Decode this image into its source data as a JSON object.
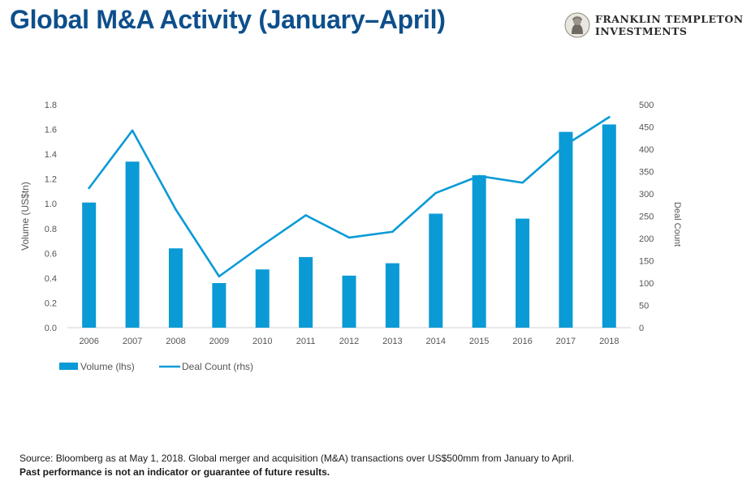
{
  "header": {
    "title": "Global M&A Activity (January–April)",
    "brand_line1": "FRANKLIN TEMPLETON",
    "brand_line2": "INVESTMENTS"
  },
  "chart_data": {
    "type": "bar",
    "categories": [
      "2006",
      "2007",
      "2008",
      "2009",
      "2010",
      "2011",
      "2012",
      "2013",
      "2014",
      "2015",
      "2016",
      "2017",
      "2018"
    ],
    "series": [
      {
        "name": "Volume (lhs)",
        "type": "bar",
        "axis": "left",
        "color": "#0a9ad6",
        "values": [
          1.01,
          1.34,
          0.64,
          0.36,
          0.47,
          0.57,
          0.42,
          0.52,
          0.92,
          1.23,
          0.88,
          1.58,
          1.64
        ]
      },
      {
        "name": "Deal Count (rhs)",
        "type": "line",
        "axis": "right",
        "color": "#0a9ad6",
        "values": [
          313,
          442,
          265,
          115,
          185,
          252,
          202,
          215,
          302,
          340,
          325,
          410,
          472
        ]
      }
    ],
    "ylabel": "Volume (US$tn)",
    "ylim": [
      0,
      1.8
    ],
    "yticks": [
      "0.0",
      "0.2",
      "0.4",
      "0.6",
      "0.8",
      "1.0",
      "1.2",
      "1.4",
      "1.6",
      "1.8"
    ],
    "y2label": "Deal Count",
    "y2lim": [
      0,
      500
    ],
    "y2ticks": [
      "0",
      "50",
      "100",
      "150",
      "200",
      "250",
      "300",
      "350",
      "400",
      "450",
      "500"
    ],
    "legend_position": "bottom-left",
    "grid": false
  },
  "footer": {
    "source": "Source: Bloomberg as at May 1, 2018. Global merger and acquisition (M&A) transactions over US$500mm from January to April.",
    "disclaimer": "Past performance is not an indicator or guarantee of future results."
  },
  "colors": {
    "title": "#0d4f8b",
    "series": "#0a9ad6",
    "axis_text": "#555555"
  }
}
